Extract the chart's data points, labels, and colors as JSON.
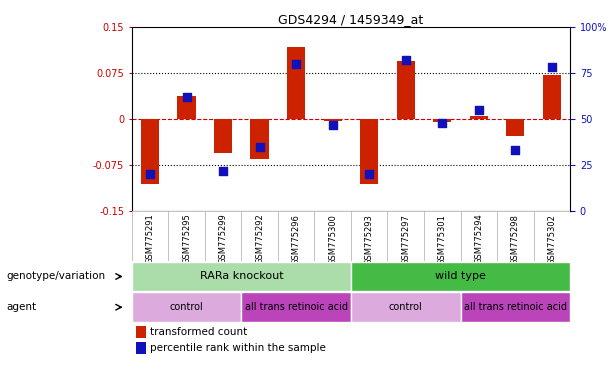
{
  "title": "GDS4294 / 1459349_at",
  "samples": [
    "GSM775291",
    "GSM775295",
    "GSM775299",
    "GSM775292",
    "GSM775296",
    "GSM775300",
    "GSM775293",
    "GSM775297",
    "GSM775301",
    "GSM775294",
    "GSM775298",
    "GSM775302"
  ],
  "red_values": [
    -0.105,
    0.038,
    -0.055,
    -0.065,
    0.118,
    -0.003,
    -0.105,
    0.095,
    -0.005,
    0.005,
    -0.028,
    0.072
  ],
  "blue_values": [
    20,
    62,
    22,
    35,
    80,
    47,
    20,
    82,
    48,
    55,
    33,
    78
  ],
  "ylim_left": [
    -0.15,
    0.15
  ],
  "ylim_right": [
    0,
    100
  ],
  "yticks_left": [
    -0.15,
    -0.075,
    0,
    0.075,
    0.15
  ],
  "yticks_right": [
    0,
    25,
    50,
    75,
    100
  ],
  "ytick_labels_left": [
    "-0.15",
    "-0.075",
    "0",
    "0.075",
    "0.15"
  ],
  "ytick_labels_right": [
    "0",
    "25",
    "50",
    "75",
    "100%"
  ],
  "red_color": "#cc2200",
  "blue_color": "#1111bb",
  "red_dashed_color": "#cc0000",
  "annotation_rows": [
    {
      "label": "genotype/variation",
      "groups": [
        {
          "text": "RARa knockout",
          "start": 0,
          "end": 6,
          "color": "#aaddaa"
        },
        {
          "text": "wild type",
          "start": 6,
          "end": 12,
          "color": "#44bb44"
        }
      ]
    },
    {
      "label": "agent",
      "groups": [
        {
          "text": "control",
          "start": 0,
          "end": 3,
          "color": "#ddaadd"
        },
        {
          "text": "all trans retinoic acid",
          "start": 3,
          "end": 6,
          "color": "#bb44bb"
        },
        {
          "text": "control",
          "start": 6,
          "end": 9,
          "color": "#ddaadd"
        },
        {
          "text": "all trans retinoic acid",
          "start": 9,
          "end": 12,
          "color": "#bb44bb"
        }
      ]
    }
  ],
  "legend": [
    {
      "label": "transformed count",
      "color": "#cc2200"
    },
    {
      "label": "percentile rank within the sample",
      "color": "#1111bb"
    }
  ],
  "bar_width": 0.5,
  "dot_size": 30
}
